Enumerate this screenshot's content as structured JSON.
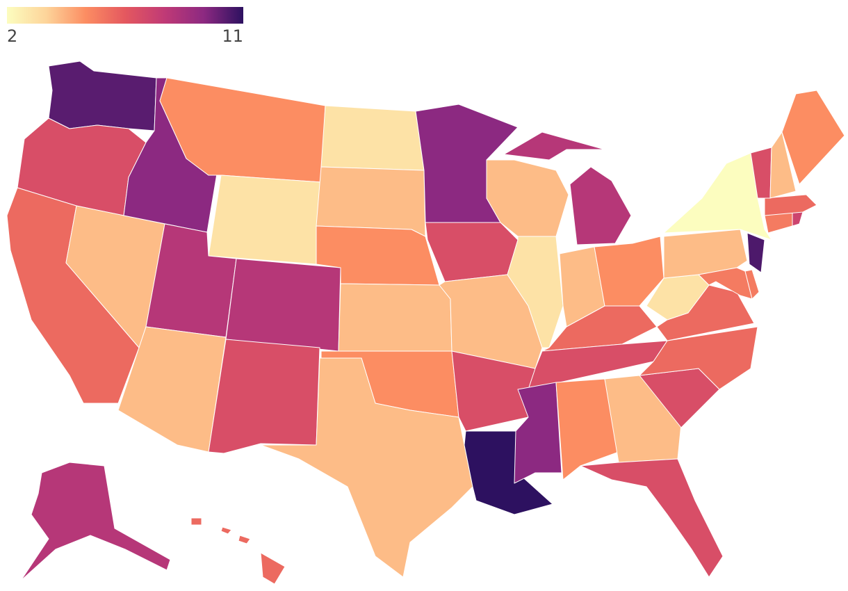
{
  "chart_data": {
    "type": "choropleth",
    "zlim": [
      2,
      11
    ],
    "zticks": [
      2,
      11
    ],
    "colorscale": [
      "#fcfdbf",
      "#fdd49a",
      "#fc8d62",
      "#e4585f",
      "#c03a76",
      "#8c2981",
      "#2d1160"
    ],
    "values": [
      10.3,
      7,
      6,
      4,
      9.5,
      5,
      3,
      8.3,
      4,
      8.3,
      7,
      3,
      4,
      5,
      4,
      5,
      4,
      9.5,
      7,
      4,
      7,
      11,
      4,
      3,
      8.3,
      4,
      5,
      6,
      7,
      9.5,
      5,
      4,
      7,
      7,
      6,
      6,
      3,
      4,
      2,
      5.5,
      5.5,
      10.5,
      5.5,
      7.5,
      6,
      7,
      4,
      5,
      8.3,
      6
    ]
  }
}
